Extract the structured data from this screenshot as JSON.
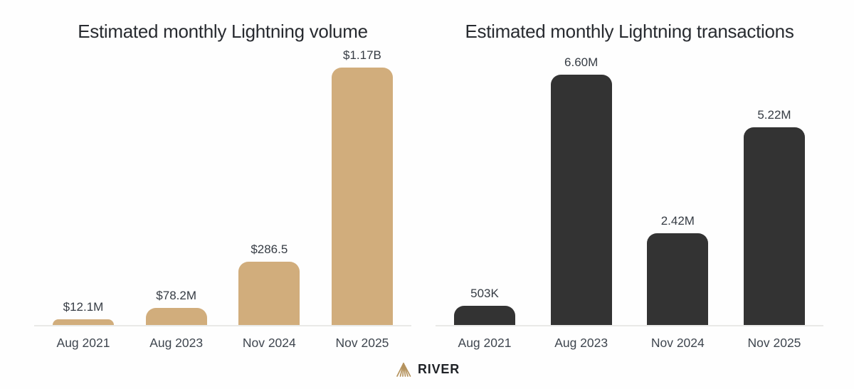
{
  "chart_data": [
    {
      "type": "bar",
      "title": "Estimated monthly Lightning volume",
      "categories": [
        "Aug 2021",
        "Aug 2023",
        "Nov 2024",
        "Nov 2025"
      ],
      "values": [
        12.1,
        78.2,
        286.5,
        1170
      ],
      "labels": [
        "$12.1M",
        "$78.2M",
        "$286.5",
        "$1.17B"
      ],
      "value_unit_note": "USD, as labeled on bars",
      "ylim": [
        0,
        1170
      ],
      "grid": false,
      "legend": false,
      "bar_color": "#d1ad7c",
      "axis_line_color": "#e9e9e7"
    },
    {
      "type": "bar",
      "title": "Estimated monthly Lightning transactions",
      "categories": [
        "Aug 2021",
        "Aug 2023",
        "Nov 2024",
        "Nov 2025"
      ],
      "values": [
        0.503,
        6.6,
        2.42,
        5.22
      ],
      "labels": [
        "503K",
        "6.60M",
        "2.42M",
        "5.22M"
      ],
      "value_unit_note": "transactions, as labeled on bars",
      "ylim": [
        0,
        6.6
      ],
      "grid": false,
      "legend": false,
      "bar_color": "#333333",
      "axis_line_color": "#e9e9e7"
    }
  ],
  "logo": {
    "label": "RIVER",
    "icon": "river-mountain-icon",
    "icon_color": "#b5935e",
    "text_color": "#1f2227"
  }
}
